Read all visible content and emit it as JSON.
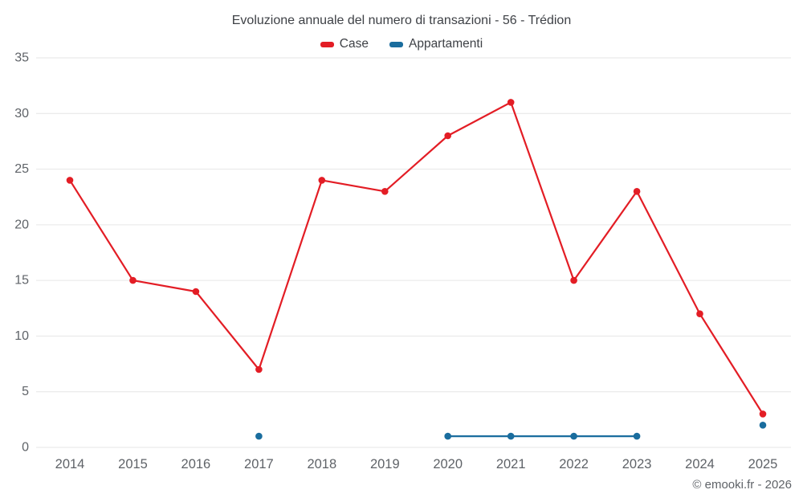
{
  "title": "Evoluzione annuale del numero di transazioni - 56 - Trédion",
  "footer": "© emooki.fr - 2026",
  "colors": {
    "case_red": "#e31d25",
    "appartamenti_blue": "#1a6d9e",
    "gridline": "#e6e6e6",
    "axis_text": "#5f6368",
    "title_text": "#3e4146"
  },
  "chart_data": {
    "type": "line",
    "title": "Evoluzione annuale del numero di transazioni - 56 - Trédion",
    "categories": [
      "2014",
      "2015",
      "2016",
      "2017",
      "2018",
      "2019",
      "2020",
      "2021",
      "2022",
      "2023",
      "2024",
      "2025"
    ],
    "series": [
      {
        "name": "Case",
        "color": "#e31d25",
        "values": [
          24,
          15,
          14,
          7,
          24,
          23,
          28,
          31,
          15,
          23,
          12,
          3
        ]
      },
      {
        "name": "Appartamenti",
        "color": "#1a6d9e",
        "values": [
          null,
          null,
          null,
          1,
          null,
          null,
          1,
          1,
          1,
          1,
          null,
          2
        ]
      }
    ],
    "xlabel": "",
    "ylabel": "",
    "ylim": [
      0,
      35
    ],
    "yticks": [
      0,
      5,
      10,
      15,
      20,
      25,
      30,
      35
    ],
    "grid": "horizontal",
    "legend_position": "top"
  }
}
